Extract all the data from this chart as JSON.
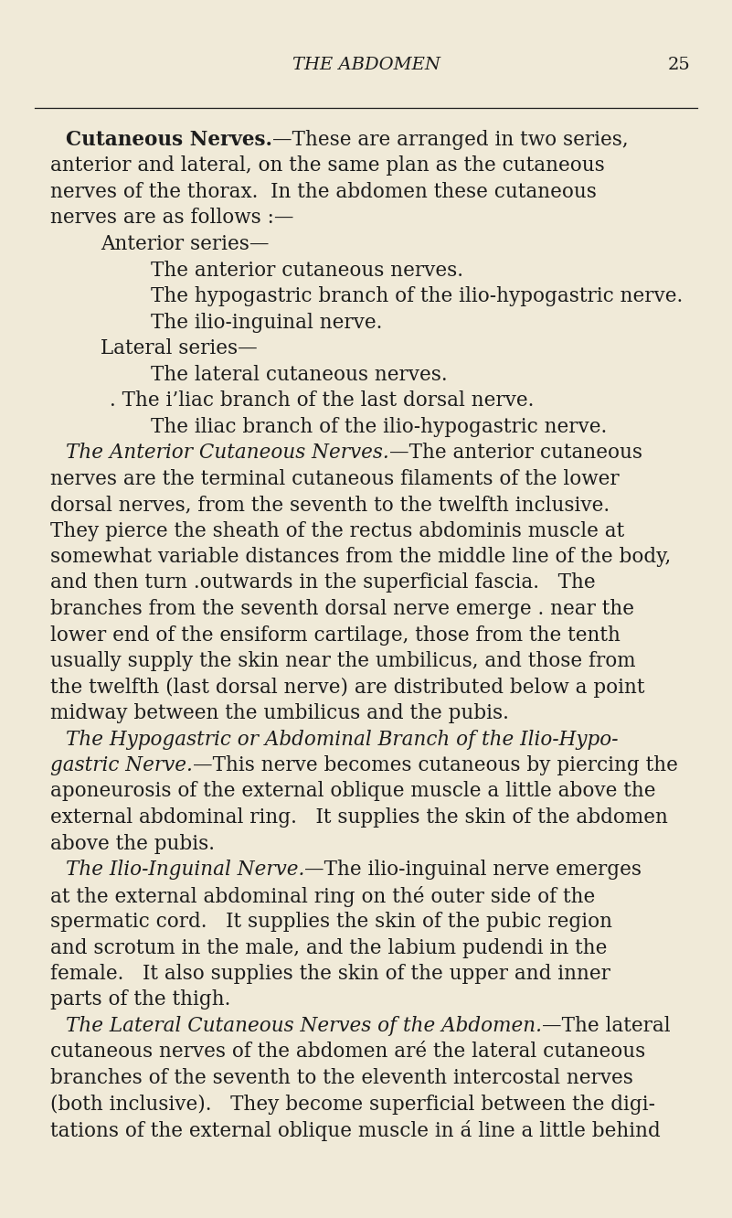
{
  "bg_color": "#f0ead8",
  "text_color": "#1c1c1c",
  "header": "THE ABDOMEN",
  "page_num": "25",
  "figsize": [
    8.01,
    13.32
  ],
  "dpi": 100,
  "content": [
    {
      "type": "para_start",
      "indent": 0.09,
      "parts": [
        {
          "text": "Cutaneous Nerves.",
          "bold": true,
          "italic": false
        },
        {
          "text": "—These are arranged in two series,",
          "bold": false,
          "italic": false
        }
      ]
    },
    {
      "type": "body",
      "parts": [
        {
          "text": "anterior and lateral, on the same plan as the cutaneous",
          "bold": false,
          "italic": false
        }
      ]
    },
    {
      "type": "body",
      "parts": [
        {
          "text": "nerves of the thorax.  In the abdomen these cutaneous",
          "bold": false,
          "italic": false
        }
      ]
    },
    {
      "type": "body",
      "parts": [
        {
          "text": "nerves are as follows :—",
          "bold": false,
          "italic": false
        }
      ]
    },
    {
      "type": "indent1",
      "parts": [
        {
          "text": "Anterior series—",
          "bold": false,
          "italic": false
        }
      ]
    },
    {
      "type": "indent2",
      "parts": [
        {
          "text": "The anterior cutaneous nerves.",
          "bold": false,
          "italic": false
        }
      ]
    },
    {
      "type": "indent2",
      "parts": [
        {
          "text": "The hypogastric branch of the ilio-hypogastric nerve.",
          "bold": false,
          "italic": false
        }
      ]
    },
    {
      "type": "indent2",
      "parts": [
        {
          "text": "The ilio-inguinal nerve.",
          "bold": false,
          "italic": false
        }
      ]
    },
    {
      "type": "indent1",
      "parts": [
        {
          "text": "Lateral series—",
          "bold": false,
          "italic": false
        }
      ]
    },
    {
      "type": "indent2",
      "parts": [
        {
          "text": "The lateral cutaneous nerves.",
          "bold": false,
          "italic": false
        }
      ]
    },
    {
      "type": "indent2b",
      "parts": [
        {
          "text": ". The i’liac branch of the last dorsal nerve.",
          "bold": false,
          "italic": false
        }
      ]
    },
    {
      "type": "indent2",
      "parts": [
        {
          "text": "The iliac branch of the ilio-hypogastric nerve.",
          "bold": false,
          "italic": false
        }
      ]
    },
    {
      "type": "para_start",
      "indent": 0.09,
      "parts": [
        {
          "text": "The Anterior Cutaneous Nerves.",
          "bold": false,
          "italic": true
        },
        {
          "text": "—The anterior cutaneous",
          "bold": false,
          "italic": false
        }
      ]
    },
    {
      "type": "body",
      "parts": [
        {
          "text": "nerves are the terminal cutaneous filaments of the lower",
          "bold": false,
          "italic": false
        }
      ]
    },
    {
      "type": "body",
      "parts": [
        {
          "text": "dorsal nerves, from the seventh to the twelfth inclusive.",
          "bold": false,
          "italic": false
        }
      ]
    },
    {
      "type": "body",
      "parts": [
        {
          "text": "They pierce the sheath of the rectus abdominis muscle at",
          "bold": false,
          "italic": false
        }
      ]
    },
    {
      "type": "body",
      "parts": [
        {
          "text": "somewhat variable distances from the middle line of the body,",
          "bold": false,
          "italic": false
        }
      ]
    },
    {
      "type": "body",
      "parts": [
        {
          "text": "and then turn .outwards in the superficial fascia.   The",
          "bold": false,
          "italic": false
        }
      ]
    },
    {
      "type": "body",
      "parts": [
        {
          "text": "branches from the seventh dorsal nerve emerge . near the",
          "bold": false,
          "italic": false
        }
      ]
    },
    {
      "type": "body",
      "parts": [
        {
          "text": "lower end of the ensiform cartilage, those from the tenth",
          "bold": false,
          "italic": false
        }
      ]
    },
    {
      "type": "body",
      "parts": [
        {
          "text": "usually supply the skin near the umbilicus, and those from",
          "bold": false,
          "italic": false
        }
      ]
    },
    {
      "type": "body",
      "parts": [
        {
          "text": "the twelfth (last dorsal nerve) are distributed below a point",
          "bold": false,
          "italic": false
        }
      ]
    },
    {
      "type": "body",
      "parts": [
        {
          "text": "midway between the umbilicus and the pubis.",
          "bold": false,
          "italic": false
        }
      ]
    },
    {
      "type": "para_start",
      "indent": 0.09,
      "parts": [
        {
          "text": "The Hypogastric or Abdominal Branch of the Ilio-Hypo-",
          "bold": false,
          "italic": true
        }
      ]
    },
    {
      "type": "body_mixed",
      "parts": [
        {
          "text": "gastric Nerve.",
          "bold": false,
          "italic": true
        },
        {
          "text": "—This nerve becomes cutaneous by piercing the",
          "bold": false,
          "italic": false
        }
      ]
    },
    {
      "type": "body",
      "parts": [
        {
          "text": "aponeurosis of the external oblique muscle a little above the",
          "bold": false,
          "italic": false
        }
      ]
    },
    {
      "type": "body",
      "parts": [
        {
          "text": "external abdominal ring.   It supplies the skin of the abdomen",
          "bold": false,
          "italic": false
        }
      ]
    },
    {
      "type": "body",
      "parts": [
        {
          "text": "above the pubis.",
          "bold": false,
          "italic": false
        }
      ]
    },
    {
      "type": "para_start",
      "indent": 0.09,
      "parts": [
        {
          "text": "The Ilio-Inguinal Nerve.",
          "bold": false,
          "italic": true
        },
        {
          "text": "—The ilio-inguinal nerve emerges",
          "bold": false,
          "italic": false
        }
      ]
    },
    {
      "type": "body",
      "parts": [
        {
          "text": "at the external abdominal ring on thé outer side of the",
          "bold": false,
          "italic": false
        }
      ]
    },
    {
      "type": "body",
      "parts": [
        {
          "text": "spermatic cord.   It supplies the skin of the pubic region",
          "bold": false,
          "italic": false
        }
      ]
    },
    {
      "type": "body",
      "parts": [
        {
          "text": "and scrotum in the male, and the labium pudendi in the",
          "bold": false,
          "italic": false
        }
      ]
    },
    {
      "type": "body",
      "parts": [
        {
          "text": "female.   It also supplies the skin of the upper and inner",
          "bold": false,
          "italic": false
        }
      ]
    },
    {
      "type": "body",
      "parts": [
        {
          "text": "parts of the thigh.",
          "bold": false,
          "italic": false
        }
      ]
    },
    {
      "type": "para_start",
      "indent": 0.09,
      "parts": [
        {
          "text": "The Lateral Cutaneous Nerves of the Abdomen.",
          "bold": false,
          "italic": true
        },
        {
          "text": "—The lateral",
          "bold": false,
          "italic": false
        }
      ]
    },
    {
      "type": "body",
      "parts": [
        {
          "text": "cutaneous nerves of the abdomen aré the lateral cutaneous",
          "bold": false,
          "italic": false
        }
      ]
    },
    {
      "type": "body",
      "parts": [
        {
          "text": "branches of the seventh to the eleventh intercostal nerves",
          "bold": false,
          "italic": false
        }
      ]
    },
    {
      "type": "body",
      "parts": [
        {
          "text": "(both inclusive).   They become superficial between the digi-",
          "bold": false,
          "italic": false
        }
      ]
    },
    {
      "type": "body",
      "parts": [
        {
          "text": "tations of the external oblique muscle in á line a little behind",
          "bold": false,
          "italic": false
        }
      ]
    }
  ]
}
